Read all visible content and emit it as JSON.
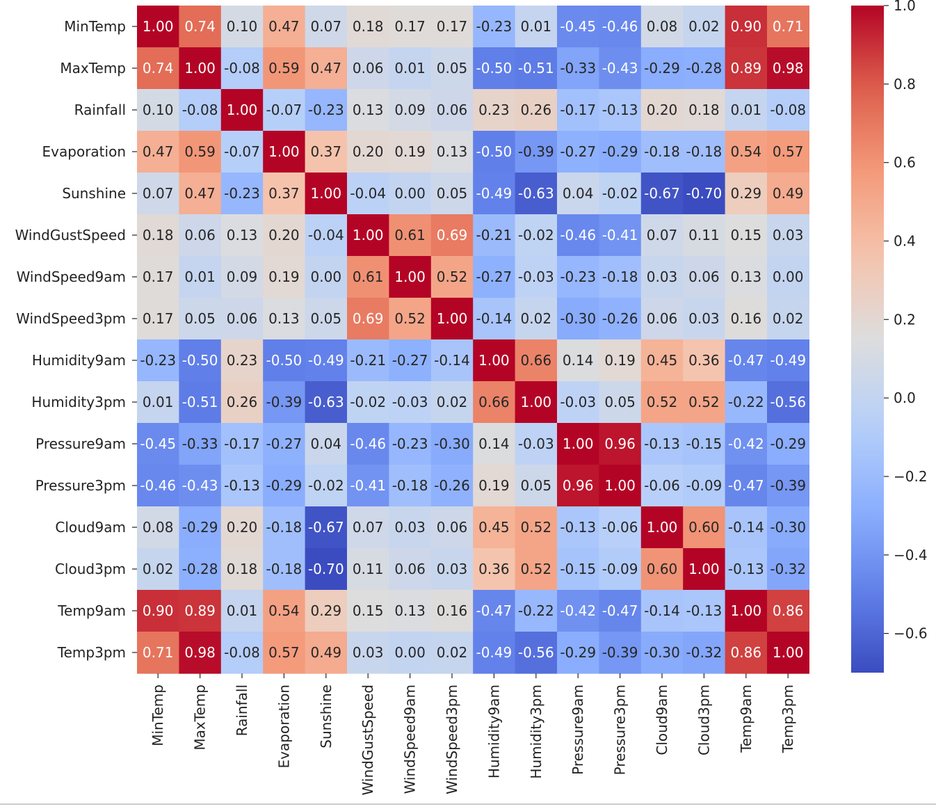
{
  "chart_data": {
    "type": "heatmap",
    "title": "",
    "xlabel": "",
    "ylabel": "",
    "colormap": "coolwarm",
    "vmin": -0.7,
    "vmax": 1.0,
    "labels": [
      "MinTemp",
      "MaxTemp",
      "Rainfall",
      "Evaporation",
      "Sunshine",
      "WindGustSpeed",
      "WindSpeed9am",
      "WindSpeed3pm",
      "Humidity9am",
      "Humidity3pm",
      "Pressure9am",
      "Pressure3pm",
      "Cloud9am",
      "Cloud3pm",
      "Temp9am",
      "Temp3pm"
    ],
    "values": [
      [
        1.0,
        0.74,
        0.1,
        0.47,
        0.07,
        0.18,
        0.17,
        0.17,
        -0.23,
        0.01,
        -0.45,
        -0.46,
        0.08,
        0.02,
        0.9,
        0.71
      ],
      [
        0.74,
        1.0,
        -0.08,
        0.59,
        0.47,
        0.06,
        0.01,
        0.05,
        -0.5,
        -0.51,
        -0.33,
        -0.43,
        -0.29,
        -0.28,
        0.89,
        0.98
      ],
      [
        0.1,
        -0.08,
        1.0,
        -0.07,
        -0.23,
        0.13,
        0.09,
        0.06,
        0.23,
        0.26,
        -0.17,
        -0.13,
        0.2,
        0.18,
        0.01,
        -0.08
      ],
      [
        0.47,
        0.59,
        -0.07,
        1.0,
        0.37,
        0.2,
        0.19,
        0.13,
        -0.5,
        -0.39,
        -0.27,
        -0.29,
        -0.18,
        -0.18,
        0.54,
        0.57
      ],
      [
        0.07,
        0.47,
        -0.23,
        0.37,
        1.0,
        -0.04,
        0.0,
        0.05,
        -0.49,
        -0.63,
        0.04,
        -0.02,
        -0.67,
        -0.7,
        0.29,
        0.49
      ],
      [
        0.18,
        0.06,
        0.13,
        0.2,
        -0.04,
        1.0,
        0.61,
        0.69,
        -0.21,
        -0.02,
        -0.46,
        -0.41,
        0.07,
        0.11,
        0.15,
        0.03
      ],
      [
        0.17,
        0.01,
        0.09,
        0.19,
        0.0,
        0.61,
        1.0,
        0.52,
        -0.27,
        -0.03,
        -0.23,
        -0.18,
        0.03,
        0.06,
        0.13,
        0.0
      ],
      [
        0.17,
        0.05,
        0.06,
        0.13,
        0.05,
        0.69,
        0.52,
        1.0,
        -0.14,
        0.02,
        -0.3,
        -0.26,
        0.06,
        0.03,
        0.16,
        0.02
      ],
      [
        -0.23,
        -0.5,
        0.23,
        -0.5,
        -0.49,
        -0.21,
        -0.27,
        -0.14,
        1.0,
        0.66,
        0.14,
        0.19,
        0.45,
        0.36,
        -0.47,
        -0.49
      ],
      [
        0.01,
        -0.51,
        0.26,
        -0.39,
        -0.63,
        -0.02,
        -0.03,
        0.02,
        0.66,
        1.0,
        -0.03,
        0.05,
        0.52,
        0.52,
        -0.22,
        -0.56
      ],
      [
        -0.45,
        -0.33,
        -0.17,
        -0.27,
        0.04,
        -0.46,
        -0.23,
        -0.3,
        0.14,
        -0.03,
        1.0,
        0.96,
        -0.13,
        -0.15,
        -0.42,
        -0.29
      ],
      [
        -0.46,
        -0.43,
        -0.13,
        -0.29,
        -0.02,
        -0.41,
        -0.18,
        -0.26,
        0.19,
        0.05,
        0.96,
        1.0,
        -0.06,
        -0.09,
        -0.47,
        -0.39
      ],
      [
        0.08,
        -0.29,
        0.2,
        -0.18,
        -0.67,
        0.07,
        0.03,
        0.06,
        0.45,
        0.52,
        -0.13,
        -0.06,
        1.0,
        0.6,
        -0.14,
        -0.3
      ],
      [
        0.02,
        -0.28,
        0.18,
        -0.18,
        -0.7,
        0.11,
        0.06,
        0.03,
        0.36,
        0.52,
        -0.15,
        -0.09,
        0.6,
        1.0,
        -0.13,
        -0.32
      ],
      [
        0.9,
        0.89,
        0.01,
        0.54,
        0.29,
        0.15,
        0.13,
        0.16,
        -0.47,
        -0.22,
        -0.42,
        -0.47,
        -0.14,
        -0.13,
        1.0,
        0.86
      ],
      [
        0.71,
        0.98,
        -0.08,
        0.57,
        0.49,
        0.03,
        0.0,
        0.02,
        -0.49,
        -0.56,
        -0.29,
        -0.39,
        -0.3,
        -0.32,
        0.86,
        1.0
      ]
    ],
    "colorbar": {
      "ticks": [
        1.0,
        0.8,
        0.6,
        0.4,
        0.2,
        0.0,
        -0.2,
        -0.4,
        -0.6
      ],
      "tick_labels": [
        "1.0",
        "0.8",
        "0.6",
        "0.4",
        "0.2",
        "0.0",
        "−0.2",
        "−0.4",
        "−0.6"
      ]
    },
    "annotations_format": "0.00",
    "grid": false,
    "legend": "colorbar-right"
  }
}
